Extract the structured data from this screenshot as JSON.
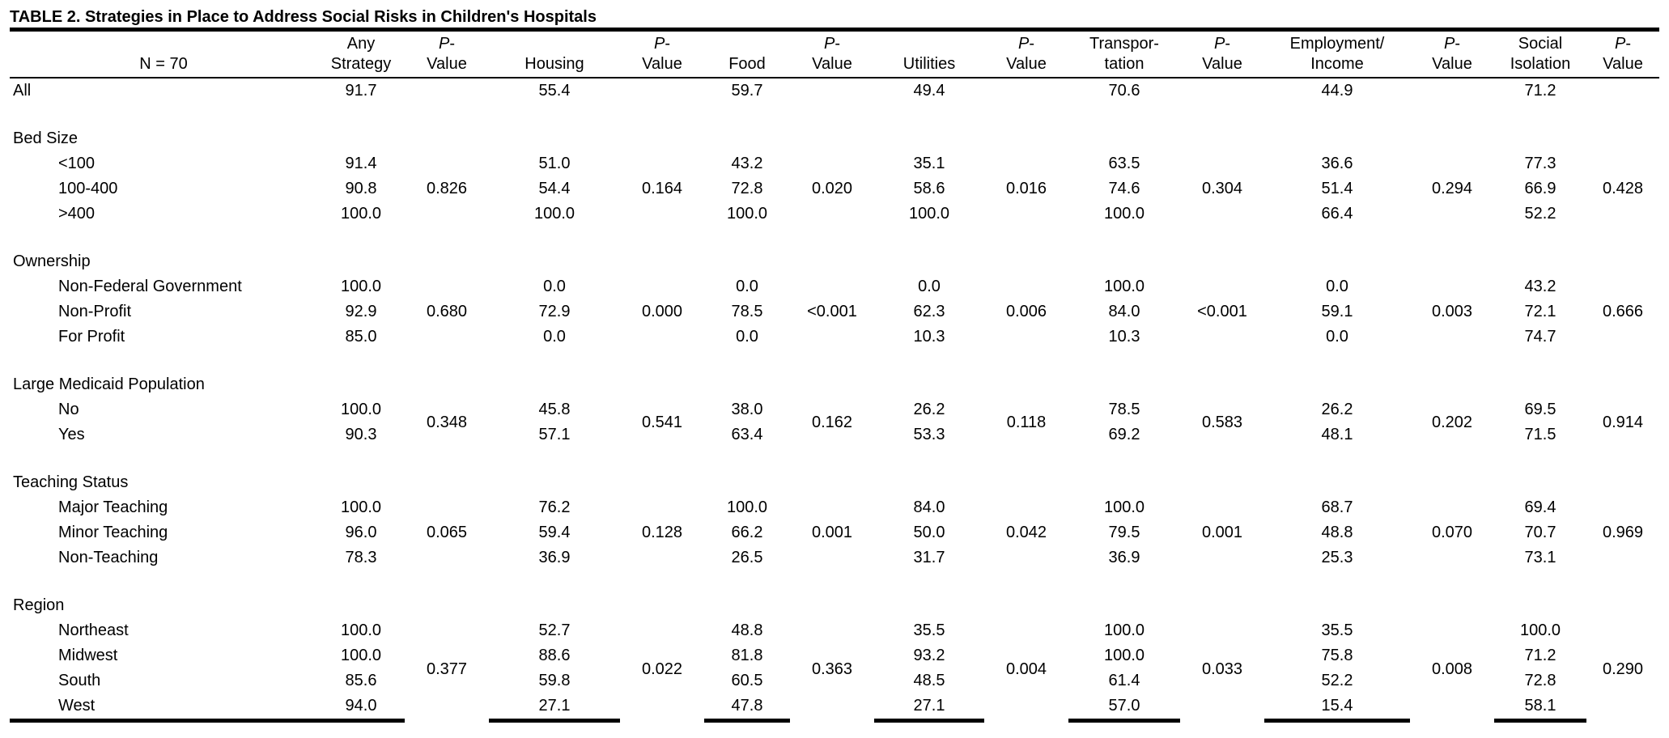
{
  "title": "TABLE 2. Strategies in Place to Address Social Risks in Children's Hospitals",
  "header": {
    "n_label": "N = 70",
    "p_italic": "P",
    "p_rest": "-",
    "p_line2": "Value",
    "any_l1": "Any",
    "any_l2": "Strategy",
    "housing": "Housing",
    "food": "Food",
    "utilities": "Utilities",
    "transport_l1": "Transpor-",
    "transport_l2": "tation",
    "employment_l1": "Employment/",
    "employment_l2": "Income",
    "social_l1": "Social",
    "social_l2": "Isolation"
  },
  "all_row": {
    "label": "All",
    "values": [
      "91.7",
      "55.4",
      "59.7",
      "49.4",
      "70.6",
      "44.9",
      "71.2"
    ]
  },
  "groups": [
    {
      "title": "Bed Size",
      "rows": [
        {
          "label": "<100",
          "values": [
            "91.4",
            "51.0",
            "43.2",
            "35.1",
            "63.5",
            "36.6",
            "77.3"
          ]
        },
        {
          "label": "100-400",
          "values": [
            "90.8",
            "54.4",
            "72.8",
            "58.6",
            "74.6",
            "51.4",
            "66.9"
          ]
        },
        {
          "label": ">400",
          "values": [
            "100.0",
            "100.0",
            "100.0",
            "100.0",
            "100.0",
            "66.4",
            "52.2"
          ]
        }
      ],
      "pvalues": [
        "0.826",
        "0.164",
        "0.020",
        "0.016",
        "0.304",
        "0.294",
        "0.428"
      ]
    },
    {
      "title": "Ownership",
      "rows": [
        {
          "label": "Non-Federal Government",
          "values": [
            "100.0",
            "0.0",
            "0.0",
            "0.0",
            "100.0",
            "0.0",
            "43.2"
          ]
        },
        {
          "label": "Non-Profit",
          "values": [
            "92.9",
            "72.9",
            "78.5",
            "62.3",
            "84.0",
            "59.1",
            "72.1"
          ]
        },
        {
          "label": "For Profit",
          "values": [
            "85.0",
            "0.0",
            "0.0",
            "10.3",
            "10.3",
            "0.0",
            "74.7"
          ]
        }
      ],
      "pvalues": [
        "0.680",
        "0.000",
        "<0.001",
        "0.006",
        "<0.001",
        "0.003",
        "0.666"
      ]
    },
    {
      "title": "Large Medicaid Population",
      "rows": [
        {
          "label": "No",
          "values": [
            "100.0",
            "45.8",
            "38.0",
            "26.2",
            "78.5",
            "26.2",
            "69.5"
          ]
        },
        {
          "label": "Yes",
          "values": [
            "90.3",
            "57.1",
            "63.4",
            "53.3",
            "69.2",
            "48.1",
            "71.5"
          ]
        }
      ],
      "pvalues": [
        "0.348",
        "0.541",
        "0.162",
        "0.118",
        "0.583",
        "0.202",
        "0.914"
      ]
    },
    {
      "title": "Teaching Status",
      "rows": [
        {
          "label": "Major Teaching",
          "values": [
            "100.0",
            "76.2",
            "100.0",
            "84.0",
            "100.0",
            "68.7",
            "69.4"
          ]
        },
        {
          "label": "Minor Teaching",
          "values": [
            "96.0",
            "59.4",
            "66.2",
            "50.0",
            "79.5",
            "48.8",
            "70.7"
          ]
        },
        {
          "label": "Non-Teaching",
          "values": [
            "78.3",
            "36.9",
            "26.5",
            "31.7",
            "36.9",
            "25.3",
            "73.1"
          ]
        }
      ],
      "pvalues": [
        "0.065",
        "0.128",
        "0.001",
        "0.042",
        "0.001",
        "0.070",
        "0.969"
      ]
    },
    {
      "title": "Region",
      "rows": [
        {
          "label": "Northeast",
          "values": [
            "100.0",
            "52.7",
            "48.8",
            "35.5",
            "100.0",
            "35.5",
            "100.0"
          ]
        },
        {
          "label": "Midwest",
          "values": [
            "100.0",
            "88.6",
            "81.8",
            "93.2",
            "100.0",
            "75.8",
            "71.2"
          ]
        },
        {
          "label": "South",
          "values": [
            "85.6",
            "59.8",
            "60.5",
            "48.5",
            "61.4",
            "52.2",
            "72.8"
          ]
        },
        {
          "label": "West",
          "values": [
            "94.0",
            "27.1",
            "47.8",
            "27.1",
            "57.0",
            "15.4",
            "58.1"
          ]
        }
      ],
      "pvalues": [
        "0.377",
        "0.022",
        "0.363",
        "0.004",
        "0.033",
        "0.008",
        "0.290"
      ]
    }
  ]
}
